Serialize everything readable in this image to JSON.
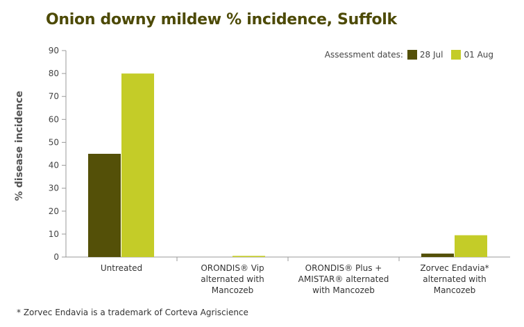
{
  "chart_data": {
    "type": "bar",
    "title": "Onion downy mildew % incidence, Suffolk",
    "ylabel": "% disease incidence",
    "xlabel": "",
    "ylim": [
      0,
      90
    ],
    "yticks": [
      0,
      10,
      20,
      30,
      40,
      50,
      60,
      70,
      80,
      90
    ],
    "categories": [
      [
        "Untreated"
      ],
      [
        "ORONDIS® Vip",
        "alternated with",
        "Mancozeb"
      ],
      [
        "ORONDIS® Plus +",
        "AMISTAR® alternated",
        "with Mancozeb"
      ],
      [
        "Zorvec Endavia*",
        "alternated with",
        "Mancozeb"
      ]
    ],
    "series": [
      {
        "name": "28 Jul",
        "values": [
          45,
          0,
          0,
          1.5
        ],
        "color": "#545008"
      },
      {
        "name": "01 Aug",
        "values": [
          80,
          0.5,
          0,
          9.5
        ],
        "color": "#c4cc28"
      }
    ],
    "legend_title": "Assessment dates:",
    "legend_position": "top-right",
    "grid": false
  },
  "footnote": "* Zorvec Endavia is a trademark of Corteva Agriscience"
}
